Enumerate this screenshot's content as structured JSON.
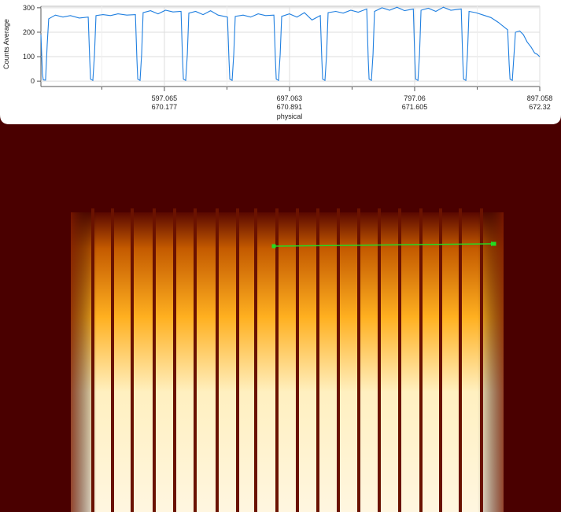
{
  "chart_data": {
    "type": "line",
    "ylabel": "Counts Average",
    "xlabel": "physical",
    "xlim": [
      498.4,
      897.058
    ],
    "ylim": [
      -22,
      306
    ],
    "xticks": [
      597.065,
      697.063,
      797.06,
      897.058
    ],
    "xtick_sublabels": [
      670.177,
      670.891,
      671.605,
      672.32
    ],
    "xminorticks": [
      547.066,
      647.064,
      747.062,
      847.059
    ],
    "yticks": [
      0,
      100,
      200,
      300
    ],
    "grid": true,
    "series": [
      {
        "color": "#1f7fe0",
        "x": [
          498.4,
          499.6,
          500.3,
          502.1,
          503.4,
          504.6,
          510,
          516,
          522,
          529,
          536.2,
          537.4,
          538.1,
          539.9,
          541.2,
          542.4,
          548,
          554,
          560,
          567,
          573.9,
          575.1,
          575.8,
          577.6,
          578.9,
          580.1,
          586,
          592,
          598,
          604,
          610.4,
          611.6,
          612.3,
          614.1,
          615.4,
          616.6,
          622,
          628,
          634,
          640,
          647.5,
          648.7,
          649.4,
          651.2,
          652.5,
          653.7,
          660,
          666,
          672,
          678,
          684.6,
          685.8,
          686.5,
          688.3,
          689.6,
          690.8,
          697,
          703,
          709,
          715,
          721.7,
          722.9,
          723.6,
          725.4,
          726.7,
          727.9,
          734,
          740,
          746,
          752,
          758.8,
          760.0,
          760.7,
          762.5,
          763.8,
          765.0,
          771,
          777,
          783,
          789,
          796.0,
          797.2,
          797.9,
          799.7,
          801.0,
          802.2,
          808,
          814,
          820,
          826,
          834.3,
          835.5,
          836.2,
          838.0,
          839.3,
          840.5,
          846,
          852,
          858,
          864,
          871.4,
          872.6,
          873.3,
          875.1,
          876.4,
          877.6,
          881,
          884,
          887,
          890,
          893,
          895,
          897.058
        ],
        "values": [
          190,
          30,
          5,
          4,
          150,
          255,
          270,
          262,
          268,
          258,
          262,
          90,
          8,
          3,
          110,
          268,
          272,
          268,
          275,
          270,
          272,
          90,
          8,
          3,
          110,
          280,
          288,
          275,
          290,
          283,
          285,
          90,
          8,
          3,
          110,
          278,
          285,
          272,
          288,
          270,
          262,
          90,
          8,
          3,
          110,
          265,
          270,
          262,
          275,
          268,
          270,
          90,
          8,
          3,
          110,
          265,
          275,
          262,
          280,
          250,
          268,
          90,
          8,
          3,
          110,
          280,
          285,
          278,
          290,
          282,
          295,
          90,
          8,
          3,
          110,
          285,
          300,
          290,
          302,
          288,
          295,
          90,
          8,
          3,
          110,
          290,
          298,
          285,
          302,
          290,
          295,
          90,
          8,
          3,
          110,
          285,
          280,
          270,
          260,
          240,
          210,
          70,
          8,
          3,
          100,
          200,
          205,
          190,
          160,
          140,
          115,
          110,
          100
        ]
      }
    ]
  }
}
